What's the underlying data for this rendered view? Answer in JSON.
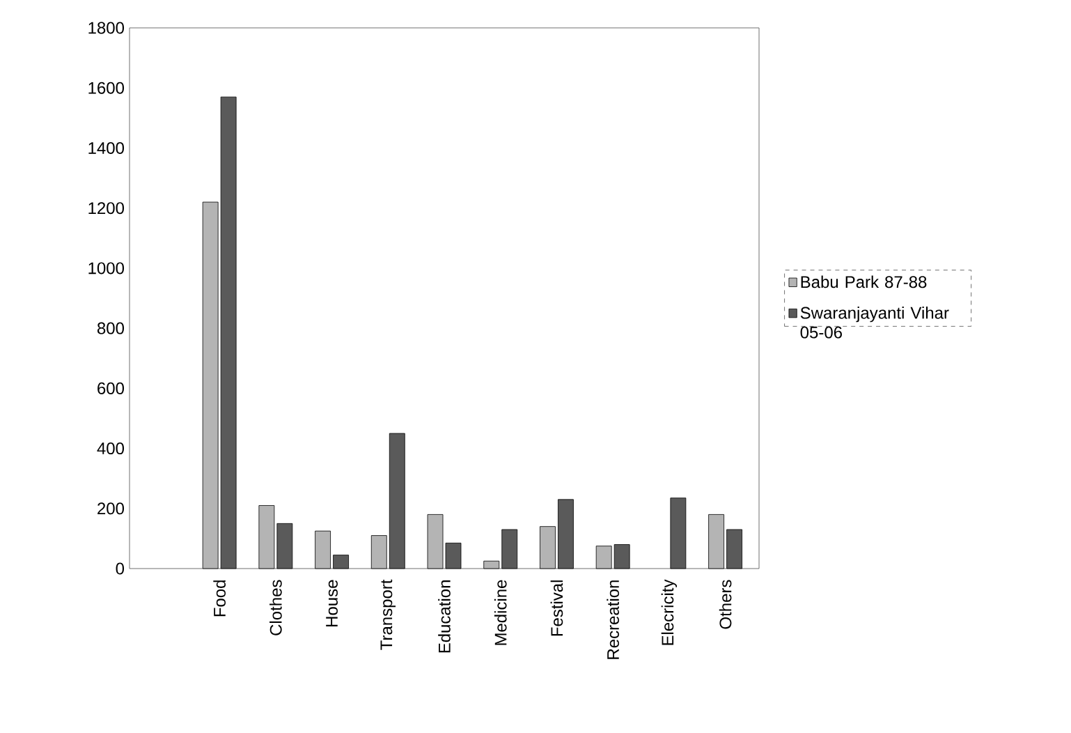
{
  "chart_data": {
    "type": "bar",
    "categories": [
      "Food",
      "Clothes",
      "House",
      "Transport",
      "Education",
      "Medicine",
      "Festival",
      "Recreation",
      "Elecricity",
      "Others"
    ],
    "series": [
      {
        "name": "Babu Park 87-88",
        "color": "#b4b4b4",
        "values": [
          1220,
          210,
          125,
          110,
          180,
          25,
          140,
          75,
          null,
          180
        ]
      },
      {
        "name": "Swaranjayanti Vihar 05-06",
        "color": "#5a5a5a",
        "values": [
          1570,
          150,
          45,
          450,
          85,
          130,
          230,
          80,
          235,
          130
        ]
      }
    ],
    "ylim": [
      0,
      1800
    ],
    "yticks": [
      0,
      200,
      400,
      600,
      800,
      1000,
      1200,
      1400,
      1600,
      1800
    ],
    "legend": "right"
  }
}
